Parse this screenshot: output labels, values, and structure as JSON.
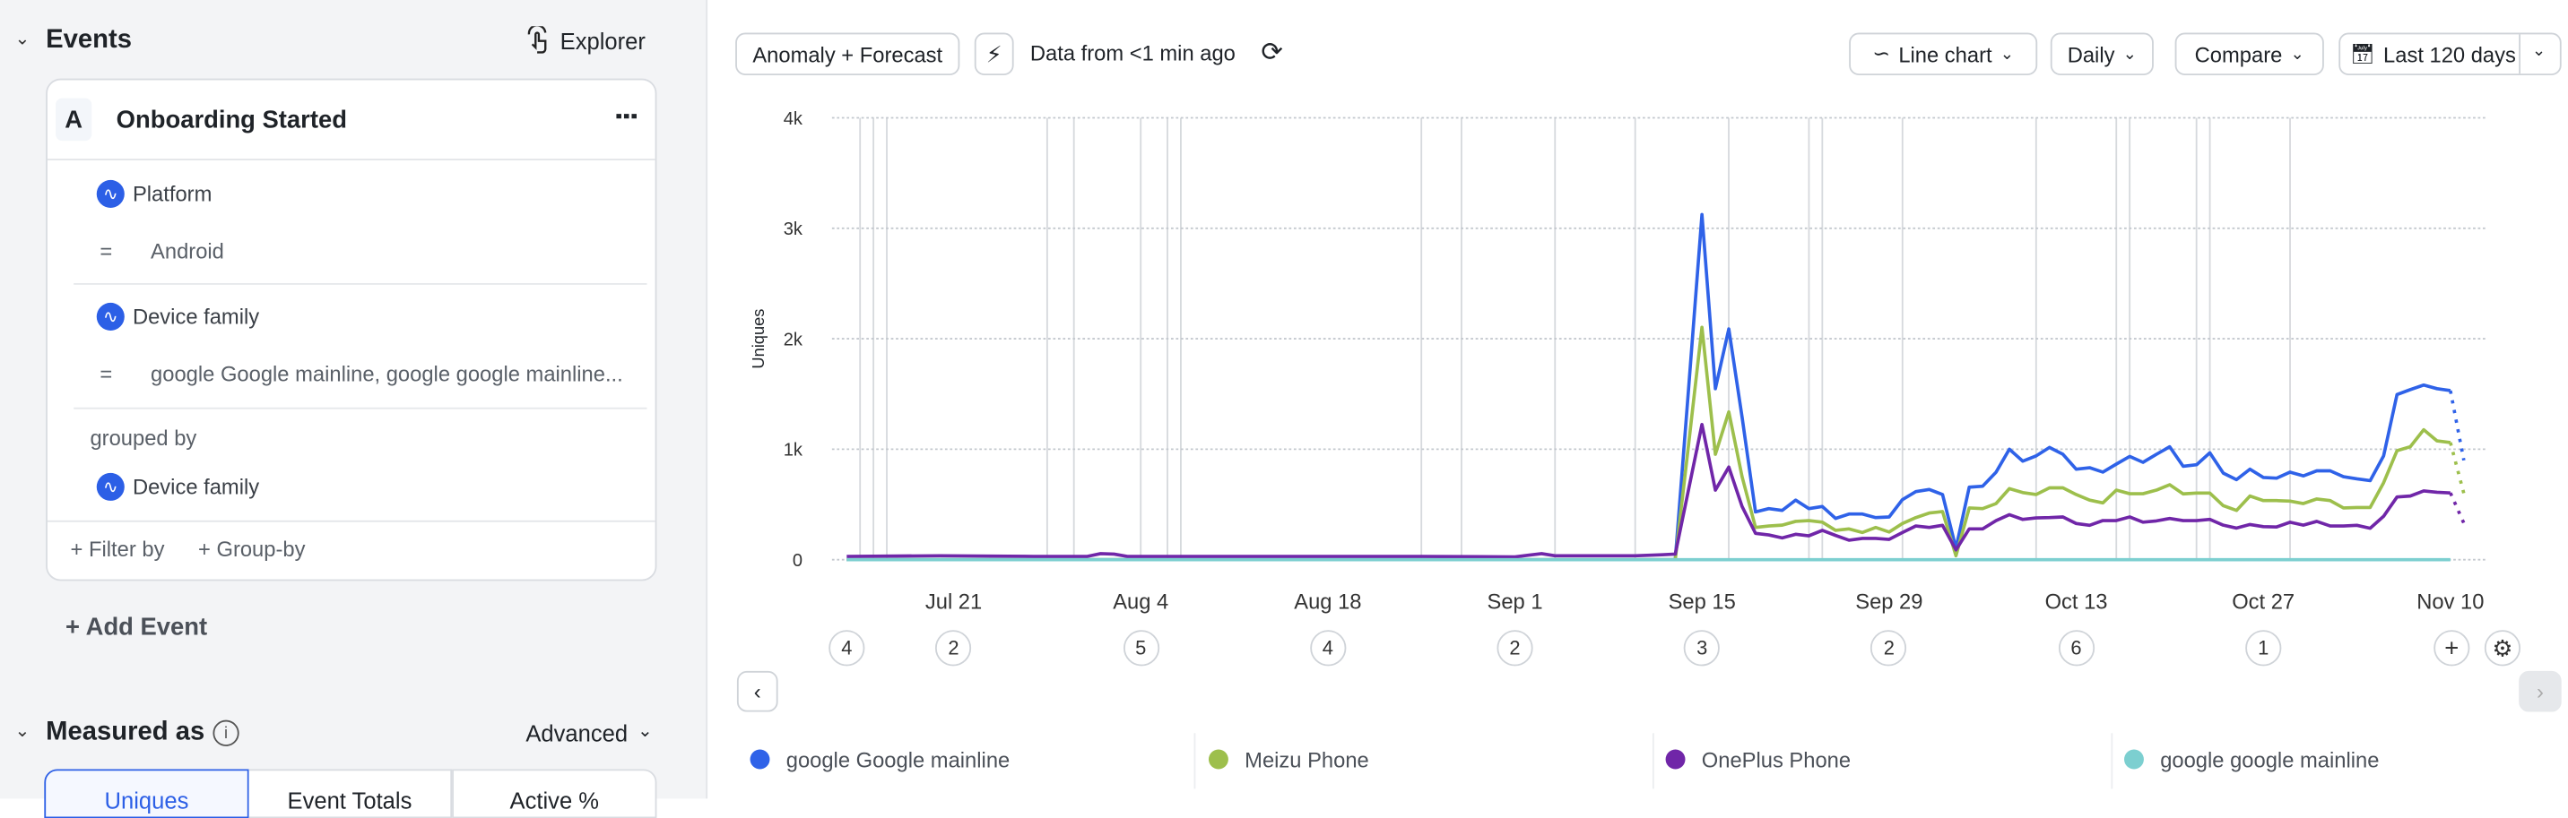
{
  "events": {
    "title": "Events",
    "explorer_label": "Explorer",
    "event": {
      "letter": "A",
      "name": "Onboarding Started",
      "filters": [
        {
          "property": "Platform",
          "operator": "=",
          "value": "Android"
        },
        {
          "property": "Device family",
          "operator": "=",
          "value": "google Google mainline, google google mainline..."
        }
      ],
      "grouped_by_label": "grouped by",
      "group_property": "Device family",
      "filter_by_label": "+ Filter by",
      "group_by_label": "+ Group-by"
    },
    "add_event_label": "+ Add Event"
  },
  "measured_as": {
    "title": "Measured as",
    "advanced_label": "Advanced",
    "tabs": [
      {
        "label": "Uniques",
        "selected": true
      },
      {
        "label": "Event Totals",
        "selected": false
      },
      {
        "label": "Active %",
        "selected": false
      }
    ]
  },
  "toolbar": {
    "anomaly_label": "Anomaly + Forecast",
    "data_freshness": "Data from <1 min ago",
    "chart_type_label": "Line chart",
    "interval_label": "Daily",
    "compare_label": "Compare",
    "date_range_label": "Last 120 days"
  },
  "colors": {
    "accent": "#2c5fe6"
  },
  "chart_data": {
    "type": "line",
    "ylabel": "Uniques",
    "ylim": [
      0,
      4000
    ],
    "yticks": [
      {
        "value": 0,
        "label": "0"
      },
      {
        "value": 1000,
        "label": "1k"
      },
      {
        "value": 2000,
        "label": "2k"
      },
      {
        "value": 3000,
        "label": "3k"
      },
      {
        "value": 4000,
        "label": "4k"
      }
    ],
    "xlim": [
      "Jul 13",
      "Nov 12"
    ],
    "xticks": [
      "Jul 21",
      "Aug 4",
      "Aug 18",
      "Sep 1",
      "Sep 15",
      "Sep 29",
      "Oct 13",
      "Oct 27",
      "Nov 10"
    ],
    "grid": "horizontal dotted",
    "legend": "bottom",
    "x": [
      "Jul 13",
      "Jul 20",
      "Jul 27",
      "Jul 31",
      "Aug 1",
      "Aug 2",
      "Aug 3",
      "Aug 15",
      "Aug 25",
      "Sep 1",
      "Sep 2",
      "Sep 3",
      "Sep 4",
      "Sep 10",
      "Sep 12",
      "Sep 13",
      "Sep 14",
      "Sep 15",
      "Sep 16",
      "Sep 17",
      "Sep 18",
      "Sep 19",
      "Sep 20",
      "Sep 21",
      "Sep 22",
      "Sep 23",
      "Sep 24",
      "Sep 25",
      "Sep 26",
      "Sep 27",
      "Sep 28",
      "Sep 29",
      "Sep 30",
      "Oct 1",
      "Oct 2",
      "Oct 3",
      "Oct 4",
      "Oct 5",
      "Oct 6",
      "Oct 7",
      "Oct 8",
      "Oct 9",
      "Oct 10",
      "Oct 11",
      "Oct 12",
      "Oct 13",
      "Oct 14",
      "Oct 15",
      "Oct 16",
      "Oct 17",
      "Oct 18",
      "Oct 19",
      "Oct 20",
      "Oct 21",
      "Oct 22",
      "Oct 23",
      "Oct 24",
      "Oct 25",
      "Oct 26",
      "Oct 27",
      "Oct 28",
      "Oct 29",
      "Oct 30",
      "Oct 31",
      "Nov 1",
      "Nov 2",
      "Nov 3",
      "Nov 4",
      "Nov 5",
      "Nov 6",
      "Nov 7",
      "Nov 8",
      "Nov 9",
      "Nov 10"
    ],
    "series": [
      {
        "name": "google Google mainline",
        "color": "#2f62e8",
        "values": [
          0,
          0,
          0,
          0,
          0,
          0,
          0,
          0,
          0,
          0,
          0,
          0,
          0,
          0,
          0,
          0,
          1560,
          3124,
          1548,
          2089,
          1290,
          432,
          462,
          446,
          540,
          462,
          481,
          373,
          413,
          413,
          381,
          386,
          543,
          616,
          635,
          589,
          103,
          657,
          665,
          792,
          1000,
          892,
          940,
          1016,
          954,
          819,
          832,
          792,
          865,
          935,
          881,
          954,
          1022,
          846,
          859,
          968,
          784,
          724,
          819,
          743,
          738,
          792,
          759,
          805,
          805,
          751,
          732,
          716,
          940,
          1495,
          1540,
          1581,
          1548,
          1530
        ],
        "forecast": {
          "x": [
            "Nov 10",
            "Nov 11"
          ],
          "values": [
            1530,
            900
          ]
        }
      },
      {
        "name": "Meizu Phone",
        "color": "#9dbf4c",
        "values": [
          0,
          0,
          0,
          0,
          0,
          0,
          0,
          0,
          0,
          0,
          0,
          0,
          0,
          0,
          0,
          0,
          1050,
          2103,
          954,
          1338,
          751,
          292,
          305,
          313,
          346,
          354,
          340,
          265,
          278,
          246,
          292,
          251,
          327,
          381,
          422,
          435,
          35,
          468,
          462,
          508,
          643,
          608,
          589,
          651,
          651,
          589,
          540,
          514,
          630,
          597,
          597,
          630,
          678,
          595,
          603,
          603,
          489,
          446,
          576,
          535,
          535,
          530,
          508,
          549,
          535,
          468,
          473,
          473,
          697,
          986,
          1022,
          1176,
          1076,
          1060
        ],
        "forecast": {
          "x": [
            "Nov 10",
            "Nov 11"
          ],
          "values": [
            1060,
            600
          ]
        }
      },
      {
        "name": "OnePlus Phone",
        "color": "#7026a8",
        "values": [
          30,
          35,
          30,
          30,
          55,
          50,
          30,
          30,
          30,
          25,
          40,
          55,
          35,
          35,
          45,
          50,
          640,
          1224,
          630,
          838,
          481,
          238,
          224,
          197,
          230,
          216,
          265,
          219,
          176,
          192,
          192,
          184,
          246,
          305,
          292,
          311,
          89,
          278,
          278,
          354,
          408,
          365,
          378,
          381,
          386,
          327,
          311,
          354,
          354,
          386,
          340,
          351,
          373,
          354,
          354,
          365,
          313,
          286,
          319,
          300,
          297,
          340,
          313,
          346,
          305,
          305,
          311,
          284,
          392,
          568,
          576,
          622,
          611,
          605
        ],
        "forecast": {
          "x": [
            "Nov 10",
            "Nov 11"
          ],
          "values": [
            605,
            330
          ]
        }
      },
      {
        "name": "google google mainline",
        "color": "#7ccfd0",
        "values": [
          0,
          0,
          0,
          0,
          0,
          0,
          0,
          0,
          0,
          0,
          0,
          0,
          0,
          0,
          0,
          0,
          0,
          0,
          0,
          0,
          0,
          0,
          0,
          0,
          0,
          0,
          0,
          0,
          0,
          0,
          0,
          0,
          0,
          0,
          0,
          0,
          0,
          0,
          0,
          0,
          0,
          0,
          0,
          0,
          0,
          0,
          0,
          0,
          0,
          0,
          0,
          0,
          0,
          0,
          0,
          0,
          0,
          0,
          0,
          0,
          0,
          0,
          0,
          0,
          0,
          0,
          0,
          0,
          0,
          0,
          0,
          0,
          0,
          0
        ]
      }
    ],
    "annotation_dates": [
      "Jul 14",
      "Jul 15",
      "Jul 16",
      "Jul 28",
      "Jul 30",
      "Aug 4",
      "Aug 6",
      "Aug 7",
      "Aug 25",
      "Aug 28",
      "Sep 4",
      "Sep 10",
      "Sep 17",
      "Sep 23",
      "Sep 24",
      "Sep 30",
      "Oct 10",
      "Oct 16",
      "Oct 17",
      "Oct 22",
      "Oct 23",
      "Oct 29"
    ],
    "annotation_counts": [
      {
        "date": "Jul 13",
        "count": "4"
      },
      {
        "date": "Jul 21",
        "count": "2"
      },
      {
        "date": "Aug 4",
        "count": "5"
      },
      {
        "date": "Aug 18",
        "count": "4"
      },
      {
        "date": "Sep 1",
        "count": "2"
      },
      {
        "date": "Sep 15",
        "count": "3"
      },
      {
        "date": "Sep 29",
        "count": "2"
      },
      {
        "date": "Oct 13",
        "count": "6"
      },
      {
        "date": "Oct 27",
        "count": "1"
      }
    ],
    "add_annotation_label": "+"
  }
}
